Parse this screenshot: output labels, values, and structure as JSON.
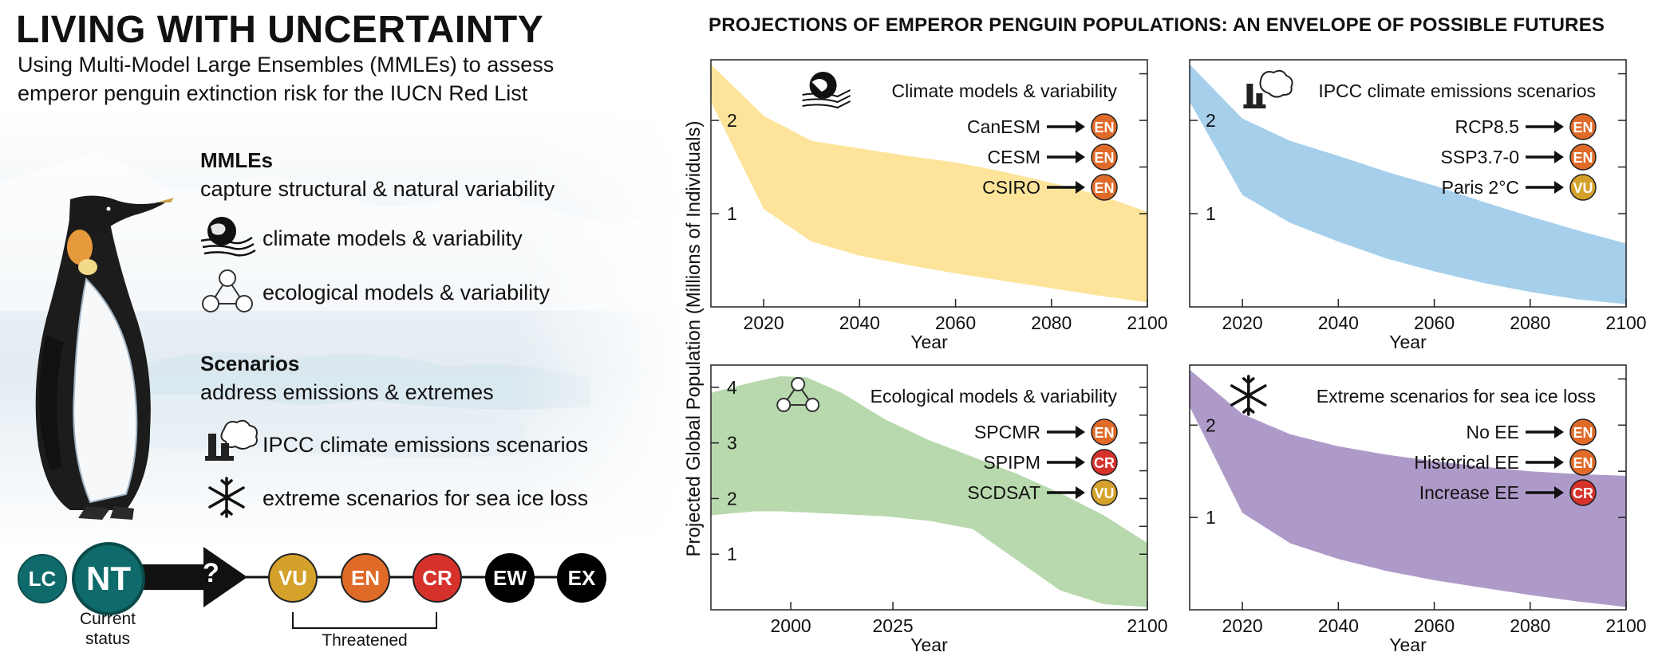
{
  "title": "LIVING WITH UNCERTAINTY",
  "subtitle_line1": "Using Multi-Model Large Ensembles (MMLEs) to assess",
  "subtitle_line2": "emperor penguin extinction risk for the IUCN Red List",
  "mmles": {
    "heading": "MMLEs",
    "desc": "capture structural & natural variability",
    "items": [
      {
        "icon": "globe-wind-icon",
        "label": "climate models & variability"
      },
      {
        "icon": "network-triangle-icon",
        "label": "ecological models & variability"
      }
    ]
  },
  "scenarios": {
    "heading": "Scenarios",
    "desc": "address emissions & extremes",
    "items": [
      {
        "icon": "factory-smoke-icon",
        "label": "IPCC climate emissions scenarios"
      },
      {
        "icon": "snowflake-icon",
        "label": "extreme scenarios for sea ice loss"
      }
    ]
  },
  "status_scale": {
    "current": [
      "LC",
      "NT"
    ],
    "question": "?",
    "future": [
      "VU",
      "EN",
      "CR",
      "EW",
      "EX"
    ],
    "current_caption_1": "Current",
    "current_caption_2": "status",
    "threatened_caption": "Threatened"
  },
  "colors": {
    "LC": "#0f6b6b",
    "NT": "#0f6b6b",
    "VU": "#d4a12a",
    "EN": "#e06a28",
    "CR": "#d6312b",
    "EW": "#000000",
    "EX": "#000000",
    "yellow": "#fde49a",
    "blue": "#a6cfec",
    "green": "#b8d9ad",
    "purple": "#ae9ac9"
  },
  "panels_title": "PROJECTIONS OF  EMPEROR PENGUIN POPULATIONS: AN ENVELOPE OF POSSIBLE FUTURES",
  "y_axis_label": "Projected Global Population (Millions of Individuals)",
  "chart_data": [
    {
      "type": "area",
      "title": "Climate models & variability",
      "icon": "globe-wind-icon",
      "xlabel": "Year",
      "x_ticks": [
        2020,
        2040,
        2060,
        2080,
        2100
      ],
      "y_ticks": [
        1,
        2
      ],
      "xlim": [
        2009,
        2100
      ],
      "ylim": [
        0,
        2.65
      ],
      "color": "#fde49a",
      "legend": [
        {
          "name": "CanESM",
          "status": "EN"
        },
        {
          "name": "CESM",
          "status": "EN"
        },
        {
          "name": "CSIRO",
          "status": "EN"
        }
      ],
      "x": [
        2009,
        2020,
        2030,
        2040,
        2050,
        2060,
        2070,
        2080,
        2090,
        2100
      ],
      "upper": [
        2.6,
        2.05,
        1.78,
        1.7,
        1.62,
        1.55,
        1.45,
        1.33,
        1.2,
        1.02
      ],
      "lower": [
        2.2,
        1.05,
        0.7,
        0.55,
        0.45,
        0.36,
        0.28,
        0.2,
        0.12,
        0.05
      ]
    },
    {
      "type": "area",
      "title": "IPCC climate emissions scenarios",
      "icon": "factory-smoke-icon",
      "xlabel": "Year",
      "x_ticks": [
        2020,
        2040,
        2060,
        2080,
        2100
      ],
      "y_ticks": [
        1,
        2
      ],
      "xlim": [
        2009,
        2100
      ],
      "ylim": [
        0,
        2.65
      ],
      "color": "#a6cfec",
      "legend": [
        {
          "name": "RCP8.5",
          "status": "EN"
        },
        {
          "name": "SSP3.7-0",
          "status": "EN"
        },
        {
          "name": "Paris 2°C",
          "status": "VU"
        }
      ],
      "x": [
        2009,
        2020,
        2030,
        2040,
        2050,
        2060,
        2070,
        2080,
        2090,
        2100
      ],
      "upper": [
        2.6,
        2.02,
        1.78,
        1.62,
        1.45,
        1.3,
        1.13,
        0.97,
        0.82,
        0.68
      ],
      "lower": [
        2.2,
        1.2,
        0.9,
        0.7,
        0.52,
        0.38,
        0.26,
        0.16,
        0.08,
        0.03
      ]
    },
    {
      "type": "area",
      "title": "Ecological models & variability",
      "icon": "network-triangle-icon",
      "xlabel": "Year",
      "x_ticks": [
        2000,
        2025,
        2100
      ],
      "y_ticks": [
        1,
        2,
        3,
        4
      ],
      "xlim": [
        0,
        1
      ],
      "ylim": [
        0,
        4.4
      ],
      "color": "#b8d9ad",
      "legend": [
        {
          "name": "SPCMR",
          "status": "EN"
        },
        {
          "name": "SPIPM",
          "status": "CR"
        },
        {
          "name": "SCDSAT",
          "status": "VU"
        }
      ],
      "x": [
        0,
        0.1,
        0.16,
        0.22,
        0.3,
        0.4,
        0.5,
        0.6,
        0.7,
        0.8,
        0.9,
        1.0
      ],
      "upper": [
        3.9,
        4.1,
        4.2,
        4.18,
        3.9,
        3.42,
        3.05,
        2.75,
        2.45,
        2.1,
        1.7,
        1.2
      ],
      "lower": [
        1.7,
        1.77,
        1.77,
        1.75,
        1.72,
        1.68,
        1.6,
        1.45,
        0.9,
        0.35,
        0.1,
        0.05
      ]
    },
    {
      "type": "area",
      "title": "Extreme scenarios for sea ice loss",
      "icon": "snowflake-icon",
      "xlabel": "Year",
      "x_ticks": [
        2020,
        2040,
        2060,
        2080,
        2100
      ],
      "y_ticks": [
        1,
        2
      ],
      "xlim": [
        2009,
        2100
      ],
      "ylim": [
        0,
        2.65
      ],
      "color": "#ae9ac9",
      "legend": [
        {
          "name": "No EE",
          "status": "EN"
        },
        {
          "name": "Historical EE",
          "status": "EN"
        },
        {
          "name": "Increase EE",
          "status": "CR"
        }
      ],
      "x": [
        2009,
        2020,
        2030,
        2040,
        2050,
        2060,
        2070,
        2080,
        2090,
        2100
      ],
      "upper": [
        2.6,
        2.12,
        1.9,
        1.77,
        1.68,
        1.61,
        1.55,
        1.5,
        1.47,
        1.45
      ],
      "lower": [
        2.2,
        1.05,
        0.72,
        0.55,
        0.42,
        0.32,
        0.24,
        0.16,
        0.09,
        0.03
      ]
    }
  ]
}
